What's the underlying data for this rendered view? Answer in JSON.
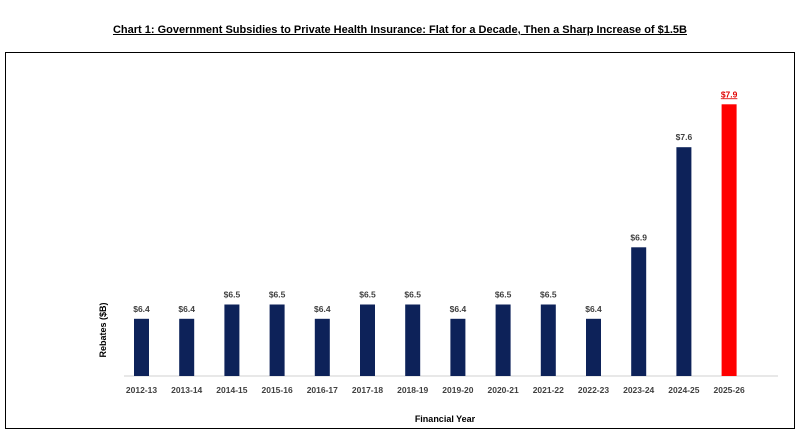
{
  "chart_data": {
    "type": "bar",
    "title": "Chart 1: Government Subsidies to Private Health Insurance: Flat for a Decade, Then a Sharp Increase of $1.5B",
    "xlabel": "Financial Year",
    "ylabel": "Rebates ($B)",
    "categories": [
      "2012-13",
      "2013-14",
      "2014-15",
      "2015-16",
      "2016-17",
      "2017-18",
      "2018-19",
      "2019-20",
      "2020-21",
      "2021-22",
      "2022-23",
      "2023-24",
      "2024-25",
      "2025-26"
    ],
    "values": [
      6.4,
      6.4,
      6.5,
      6.5,
      6.4,
      6.5,
      6.5,
      6.4,
      6.5,
      6.5,
      6.4,
      6.9,
      7.6,
      7.9
    ],
    "data_labels": [
      "$6.4",
      "$6.4",
      "$6.5",
      "$6.5",
      "$6.4",
      "$6.5",
      "$6.5",
      "$6.4",
      "$6.5",
      "$6.5",
      "$6.4",
      "$6.9",
      "$7.6",
      "$7.9"
    ],
    "ylim": [
      6.0,
      8.0
    ],
    "grid": false,
    "legend": "none",
    "colors": {
      "bar": "#0d2259",
      "highlight": "#ff0000",
      "highlight_label": "#e00000",
      "label": "#404040",
      "axis": "#d0d0d0"
    },
    "highlight_index": 13
  }
}
